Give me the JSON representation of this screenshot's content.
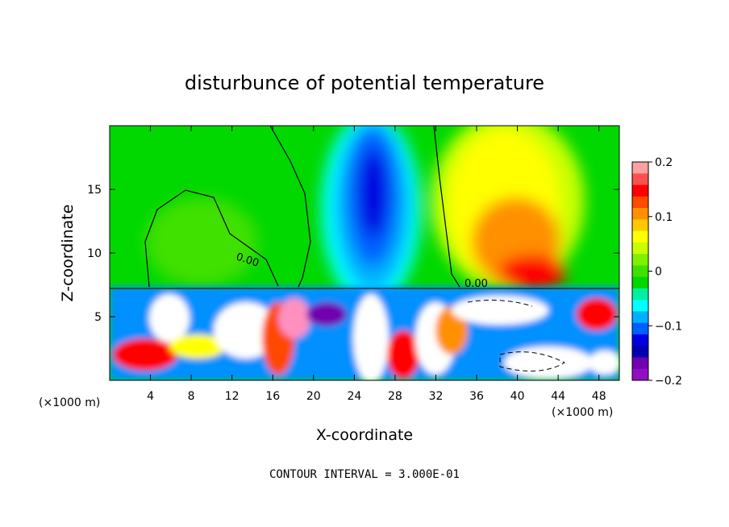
{
  "chart_data": {
    "type": "heatmap",
    "title": "disturbunce of potential temperature",
    "xlabel": "X-coordinate",
    "ylabel": "Z-coordinate",
    "x_unit": "(×1000 m)",
    "y_unit": "(×1000 m)",
    "xlim": [
      0,
      50
    ],
    "ylim": [
      0,
      20
    ],
    "x_ticks": [
      4,
      8,
      12,
      16,
      20,
      24,
      28,
      32,
      36,
      40,
      44,
      48
    ],
    "y_ticks": [
      5,
      10,
      15
    ],
    "colorbar": {
      "range": [
        -0.2,
        0.2
      ],
      "tick_values": [
        0.2,
        0.1,
        0,
        -0.1,
        -0.2
      ],
      "tick_labels": [
        "0.2",
        "0.1",
        "0",
        "−0.1",
        "−0.2"
      ],
      "colors": [
        "#ffa0a0",
        "#ff5050",
        "#ff0000",
        "#ff4a00",
        "#ff9000",
        "#ffc800",
        "#ffff00",
        "#c8ff00",
        "#80f000",
        "#40e000",
        "#00d800",
        "#00f0a0",
        "#00ffff",
        "#00b0ff",
        "#0060ff",
        "#0000e0",
        "#0000b0",
        "#7000b0",
        "#9010c0"
      ]
    },
    "contour_labels": [
      "0.00",
      "0.00"
    ],
    "contour_interval": "CONTOUR INTERVAL = 3.000E-01",
    "features": [
      {
        "name": "upper-negative-plume",
        "x_center": 26.5,
        "z_center": 14,
        "value": -0.17
      },
      {
        "name": "upper-positive-plume",
        "x_center": 40,
        "z_center": 11,
        "value": 0.14
      },
      {
        "name": "boundary-layer-turbulence",
        "z_top": 7.3,
        "value_range": [
          -0.2,
          0.2
        ]
      }
    ]
  }
}
